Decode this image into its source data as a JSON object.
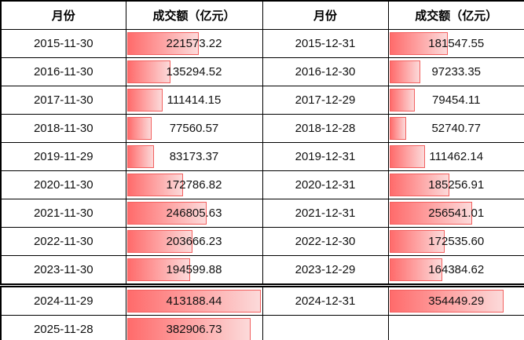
{
  "table": {
    "headers": [
      "月份",
      "成交额（亿元）",
      "月份",
      "成交额（亿元）"
    ],
    "bar_max": 413188.44,
    "rows": [
      {
        "left_month": "2015-11-30",
        "left_value": "221573.22",
        "right_month": "2015-12-31",
        "right_value": "181547.55",
        "divider_below": false
      },
      {
        "left_month": "2016-11-30",
        "left_value": "135294.52",
        "right_month": "2016-12-30",
        "right_value": "97233.35",
        "divider_below": false
      },
      {
        "left_month": "2017-11-30",
        "left_value": "111414.15",
        "right_month": "2017-12-29",
        "right_value": "79454.11",
        "divider_below": false
      },
      {
        "left_month": "2018-11-30",
        "left_value": "77560.57",
        "right_month": "2018-12-28",
        "right_value": "52740.77",
        "divider_below": false
      },
      {
        "left_month": "2019-11-29",
        "left_value": "83173.37",
        "right_month": "2019-12-31",
        "right_value": "111462.14",
        "divider_below": false
      },
      {
        "left_month": "2020-11-30",
        "left_value": "172786.82",
        "right_month": "2020-12-31",
        "right_value": "185256.91",
        "divider_below": false
      },
      {
        "left_month": "2021-11-30",
        "left_value": "246805.63",
        "right_month": "2021-12-31",
        "right_value": "256541.01",
        "divider_below": false
      },
      {
        "left_month": "2022-11-30",
        "left_value": "203666.23",
        "right_month": "2022-12-30",
        "right_value": "172535.60",
        "divider_below": false
      },
      {
        "left_month": "2023-11-30",
        "left_value": "194599.88",
        "right_month": "2023-12-29",
        "right_value": "164384.62",
        "divider_below": true
      },
      {
        "left_month": "2024-11-29",
        "left_value": "413188.44",
        "right_month": "2024-12-31",
        "right_value": "354449.29",
        "divider_below": false
      },
      {
        "left_month": "2025-11-28",
        "left_value": "382906.73",
        "right_month": "",
        "right_value": "",
        "divider_below": false
      }
    ]
  },
  "colors": {
    "bar_border": "#f2605f",
    "bar_gradient_start": "#ff6b6b",
    "bar_gradient_end": "#fcdada",
    "grid_border": "#000000"
  },
  "chart_data": {
    "type": "table",
    "title": "",
    "columns": [
      "月份",
      "成交额（亿元）",
      "月份",
      "成交额（亿元）"
    ],
    "series": [
      {
        "name": "成交额（亿元）-左",
        "x": [
          "2015-11-30",
          "2016-11-30",
          "2017-11-30",
          "2018-11-30",
          "2019-11-29",
          "2020-11-30",
          "2021-11-30",
          "2022-11-30",
          "2023-11-30",
          "2024-11-29",
          "2025-11-28"
        ],
        "values": [
          221573.22,
          135294.52,
          111414.15,
          77560.57,
          83173.37,
          172786.82,
          246805.63,
          203666.23,
          194599.88,
          413188.44,
          382906.73
        ]
      },
      {
        "name": "成交额（亿元）-右",
        "x": [
          "2015-12-31",
          "2016-12-30",
          "2017-12-29",
          "2018-12-28",
          "2019-12-31",
          "2020-12-31",
          "2021-12-31",
          "2022-12-30",
          "2023-12-29",
          "2024-12-31"
        ],
        "values": [
          181547.55,
          97233.35,
          79454.11,
          52740.77,
          111462.14,
          185256.91,
          256541.01,
          172535.6,
          164384.62,
          354449.29
        ]
      }
    ],
    "bar_scale_max": 413188.44
  }
}
